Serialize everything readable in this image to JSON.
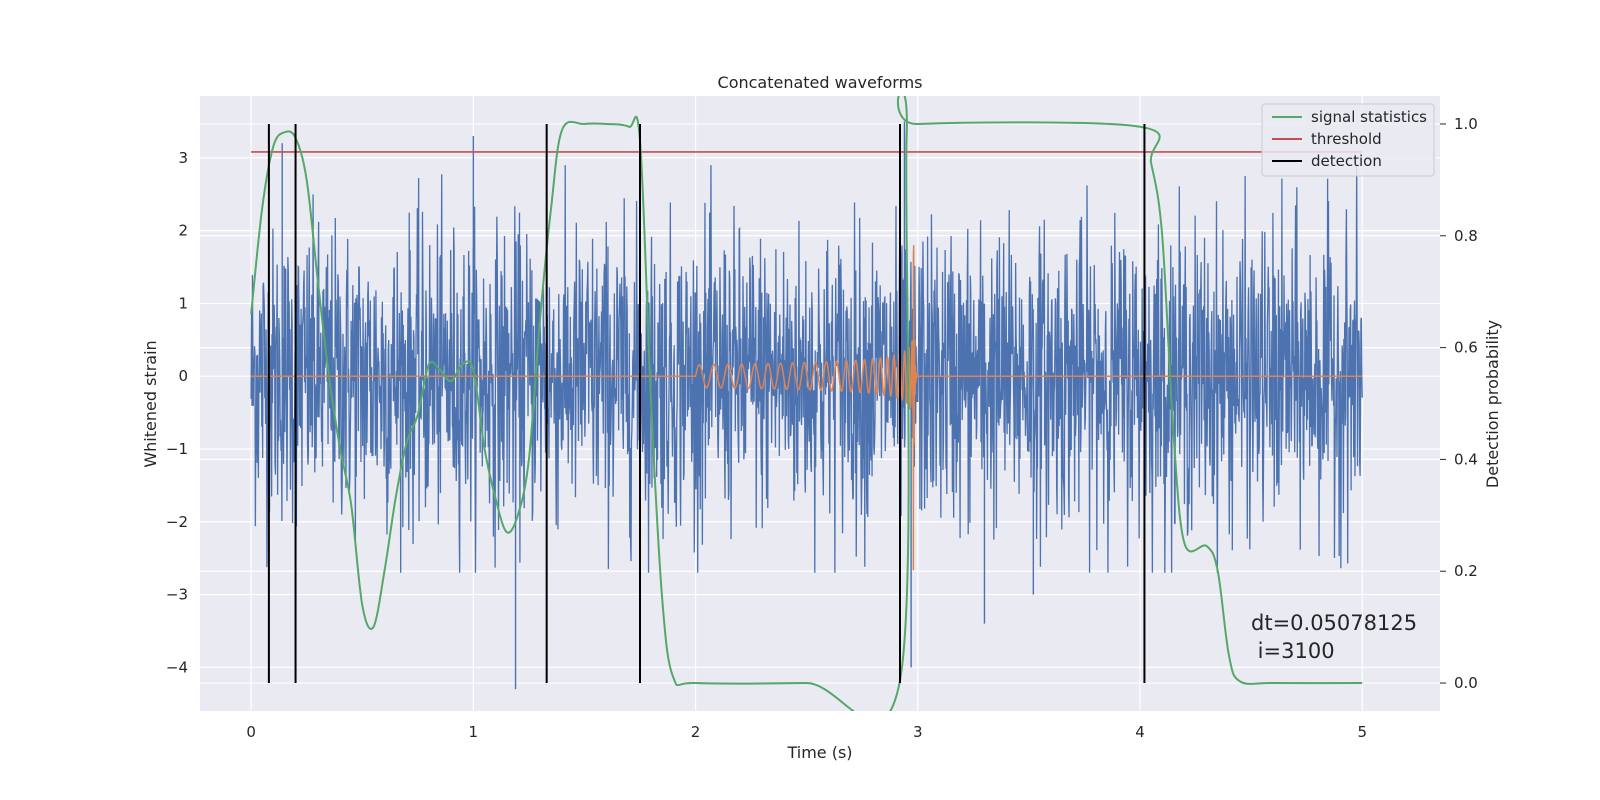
{
  "chart_data": {
    "type": "line",
    "title": "Concatenated waveforms",
    "xlabel": "Time (s)",
    "ylabel_left": "Whitened strain",
    "ylabel_right": "Detection probability",
    "xlim": [
      -0.23,
      5.35
    ],
    "ylim_left": [
      -4.6,
      3.85
    ],
    "ylim_right": [
      -0.05,
      1.05
    ],
    "x_ticks": [
      0,
      1,
      2,
      3,
      4,
      5
    ],
    "y_left_ticks": [
      -4,
      -3,
      -2,
      -1,
      0,
      1,
      2,
      3
    ],
    "y_right_ticks": [
      0.0,
      0.2,
      0.4,
      0.6,
      0.8,
      1.0
    ],
    "grid": true,
    "legend_position": "top-right",
    "annotation": {
      "line1": "dt=0.05078125",
      "line2": " i=3100"
    },
    "series": [
      {
        "name": "signal statistics",
        "color": "#55a868",
        "axis": "right",
        "points": [
          [
            0.0,
            0.66
          ],
          [
            0.05,
            0.85
          ],
          [
            0.1,
            0.96
          ],
          [
            0.15,
            0.985
          ],
          [
            0.2,
            0.975
          ],
          [
            0.25,
            0.9
          ],
          [
            0.3,
            0.72
          ],
          [
            0.35,
            0.55
          ],
          [
            0.4,
            0.42
          ],
          [
            0.45,
            0.32
          ],
          [
            0.5,
            0.14
          ],
          [
            0.55,
            0.1
          ],
          [
            0.6,
            0.2
          ],
          [
            0.65,
            0.33
          ],
          [
            0.7,
            0.43
          ],
          [
            0.75,
            0.48
          ],
          [
            0.8,
            0.57
          ],
          [
            0.85,
            0.56
          ],
          [
            0.9,
            0.54
          ],
          [
            0.95,
            0.57
          ],
          [
            1.0,
            0.56
          ],
          [
            1.05,
            0.42
          ],
          [
            1.1,
            0.33
          ],
          [
            1.15,
            0.27
          ],
          [
            1.2,
            0.3
          ],
          [
            1.25,
            0.4
          ],
          [
            1.3,
            0.65
          ],
          [
            1.35,
            0.85
          ],
          [
            1.4,
            0.99
          ],
          [
            1.5,
            1.0
          ],
          [
            1.6,
            1.0
          ],
          [
            1.7,
            0.995
          ],
          [
            1.75,
            0.97
          ],
          [
            1.8,
            0.5
          ],
          [
            1.85,
            0.15
          ],
          [
            1.9,
            0.01
          ],
          [
            2.0,
            0.0
          ],
          [
            2.5,
            0.0
          ],
          [
            2.92,
            0.005
          ],
          [
            2.95,
            0.98
          ],
          [
            3.0,
            1.0
          ],
          [
            4.0,
            0.995
          ],
          [
            4.05,
            0.93
          ],
          [
            4.1,
            0.8
          ],
          [
            4.15,
            0.45
          ],
          [
            4.2,
            0.25
          ],
          [
            4.3,
            0.245
          ],
          [
            4.35,
            0.2
          ],
          [
            4.4,
            0.05
          ],
          [
            4.45,
            0.003
          ],
          [
            4.6,
            0.0
          ],
          [
            5.0,
            0.0
          ]
        ]
      },
      {
        "name": "threshold",
        "color": "#c44e52",
        "axis": "right",
        "points": [
          [
            0.0,
            0.95
          ],
          [
            5.0,
            0.95
          ]
        ]
      },
      {
        "name": "detection",
        "color": "#000000",
        "axis": "right",
        "vlines_x": [
          0.08,
          0.2,
          1.33,
          1.75,
          2.92,
          4.02
        ]
      },
      {
        "color": "#4c72b0",
        "axis": "left",
        "kind": "noise",
        "x_range": [
          0,
          5
        ],
        "amplitude_std": 1.0,
        "notable_extremes": [
          [
            0.14,
            3.2
          ],
          [
            1.0,
            3.3
          ],
          [
            1.19,
            -4.3
          ],
          [
            2.94,
            3.5
          ],
          [
            2.97,
            -4.0
          ],
          [
            3.3,
            -3.4
          ],
          [
            3.52,
            -3.0
          ]
        ]
      },
      {
        "color": "#dd8452",
        "axis": "left",
        "kind": "chirp",
        "x_start": 2.0,
        "x_merge": 2.98,
        "start_amplitude": 0.15,
        "peak_amplitude": 3.2
      }
    ]
  }
}
